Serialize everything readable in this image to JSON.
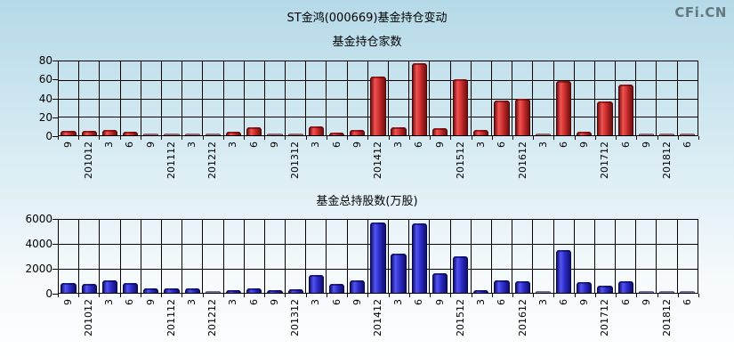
{
  "page": {
    "title": "ST金鸿(000669)基金持仓变动",
    "watermark": "CFi.CN"
  },
  "chart_data": [
    {
      "type": "bar",
      "title": "基金持仓家数",
      "categories": [
        "9",
        "201012",
        "3",
        "6",
        "9",
        "201112",
        "3",
        "201212",
        "3",
        "6",
        "9",
        "201312",
        "3",
        "6",
        "9",
        "201412",
        "3",
        "6",
        "9",
        "201512",
        "3",
        "6",
        "201612",
        "3",
        "6",
        "9",
        "201712",
        "6",
        "9",
        "201812",
        "6"
      ],
      "values": [
        5,
        5,
        6,
        4,
        2,
        2,
        1,
        1,
        4,
        9,
        2,
        2,
        10,
        3,
        6,
        64,
        9,
        78,
        8,
        61,
        6,
        38,
        40,
        2,
        59,
        4,
        37,
        55,
        1,
        2,
        2
      ],
      "xlabel": "",
      "ylabel": "",
      "ylim": [
        0,
        80
      ],
      "yticks": [
        0,
        20,
        40,
        60,
        80
      ],
      "grid": true,
      "legend": "none",
      "bar_color": "#d03030"
    },
    {
      "type": "bar",
      "title": "基金总持股数(万股)",
      "categories": [
        "9",
        "201012",
        "3",
        "6",
        "9",
        "201112",
        "3",
        "201212",
        "3",
        "6",
        "9",
        "201312",
        "3",
        "6",
        "9",
        "201412",
        "3",
        "6",
        "9",
        "201512",
        "3",
        "6",
        "201612",
        "3",
        "6",
        "9",
        "201712",
        "6",
        "9",
        "201812",
        "6"
      ],
      "values": [
        800,
        700,
        1000,
        800,
        400,
        400,
        400,
        100,
        200,
        400,
        250,
        300,
        1500,
        750,
        1000,
        5800,
        3200,
        5700,
        1600,
        3000,
        200,
        1000,
        950,
        60,
        3500,
        850,
        600,
        950,
        50,
        50,
        60
      ],
      "xlabel": "",
      "ylabel": "",
      "ylim": [
        0,
        6000
      ],
      "yticks": [
        0,
        2000,
        4000,
        6000
      ],
      "grid": true,
      "legend": "none",
      "bar_color": "#3030d0"
    }
  ]
}
